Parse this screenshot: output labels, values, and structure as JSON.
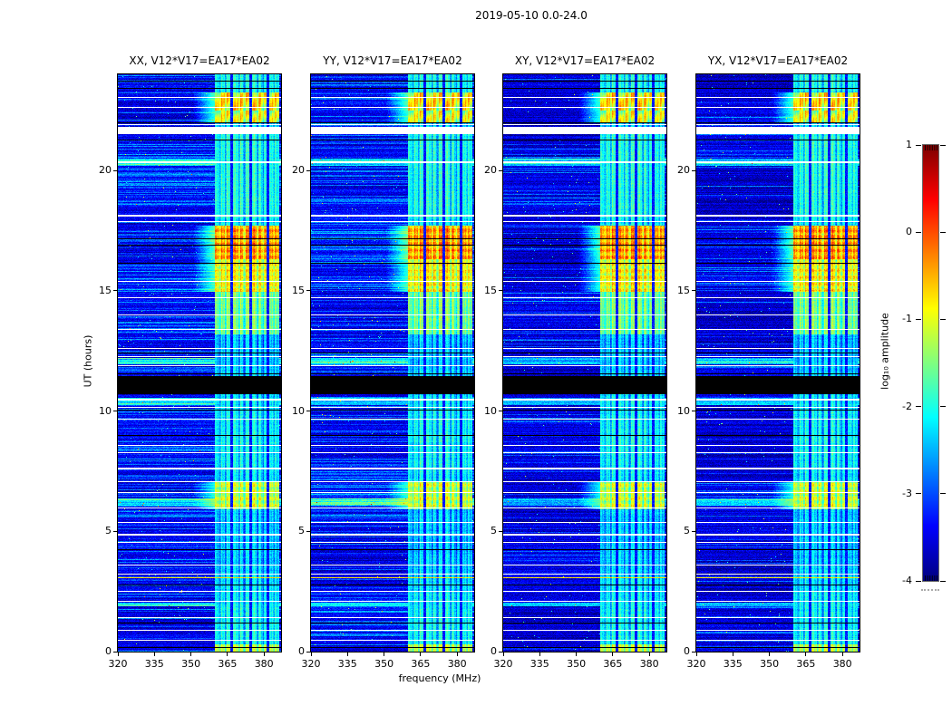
{
  "figure": {
    "title": "2019-05-10 0.0-24.0"
  },
  "chart_data": {
    "type": "heatmap",
    "title": "2019-05-10 0.0-24.0",
    "xlabel": "frequency (MHz)",
    "ylabel": "UT (hours)",
    "xlim": [
      320,
      387
    ],
    "xticks": [
      320,
      335,
      350,
      365,
      380
    ],
    "ylim": [
      0,
      24
    ],
    "yticks": [
      0,
      5,
      10,
      15,
      20
    ],
    "value_range": [
      -4,
      1
    ],
    "colormap": "jet",
    "colorbar": {
      "label": "log₁₀ amplitude",
      "ticks": [
        1,
        0,
        -1,
        -2,
        -3,
        -4
      ]
    },
    "panels": [
      {
        "title": "XX, V12*V17=EA17*EA02",
        "seed": 101,
        "bg": -3.5,
        "stripe_prob": 0.2
      },
      {
        "title": "YY, V12*V17=EA17*EA02",
        "seed": 202,
        "bg": -3.5,
        "stripe_prob": 0.2
      },
      {
        "title": "XY, V12*V17=EA17*EA02",
        "seed": 303,
        "bg": -3.62,
        "stripe_prob": 0.08
      },
      {
        "title": "YX, V12*V17=EA17*EA02",
        "seed": 404,
        "bg": -3.62,
        "stripe_prob": 0.08
      }
    ],
    "band": {
      "start": 0.594,
      "end": 0.989,
      "base": -2.15,
      "gaps": [
        [
          0.689,
          0.707
        ],
        [
          0.806,
          0.822
        ],
        [
          0.911,
          0.928
        ]
      ],
      "dark_cols": [
        0.625,
        0.66,
        0.745,
        0.775,
        0.855,
        0.885,
        0.955
      ]
    },
    "band_events": [
      {
        "ut": [
          23.3,
          24.0
        ],
        "value": -1.95,
        "kind": "flat"
      },
      {
        "ut": [
          22.5,
          23.25
        ],
        "value": -0.5,
        "kind": "blob"
      },
      {
        "ut": [
          21.95,
          22.48
        ],
        "value": -0.72,
        "kind": "blob"
      },
      {
        "ut": [
          18.0,
          21.55
        ],
        "value": -1.9,
        "kind": "flat"
      },
      {
        "ut": [
          16.3,
          17.7
        ],
        "value": -0.28,
        "kind": "rows",
        "spill": true
      },
      {
        "ut": [
          14.95,
          16.3
        ],
        "value": -0.78,
        "kind": "rows",
        "spill": true
      },
      {
        "ut": [
          13.2,
          14.95
        ],
        "value": -1.45,
        "kind": "flat"
      },
      {
        "ut": [
          5.9,
          7.05
        ],
        "value": -1.05,
        "kind": "rows",
        "spill": true
      },
      {
        "ut": [
          0.0,
          0.3
        ],
        "value": -1.1,
        "kind": "flat"
      }
    ],
    "black_band": [
      10.75,
      11.45
    ],
    "white_band": [
      21.55,
      21.8
    ],
    "white_lines": [
      [
        23.05,
        1
      ],
      [
        22.65,
        1
      ],
      [
        21.93,
        1
      ],
      [
        20.4,
        2
      ],
      [
        18.15,
        2
      ],
      [
        17.9,
        1
      ],
      [
        15.4,
        1
      ],
      [
        14.75,
        1
      ],
      [
        14.0,
        1
      ],
      [
        13.4,
        1
      ],
      [
        12.62,
        1
      ],
      [
        12.3,
        1
      ],
      [
        11.92,
        1
      ],
      [
        10.52,
        2
      ],
      [
        10.18,
        1
      ],
      [
        9.7,
        1
      ],
      [
        8.6,
        1
      ],
      [
        8.3,
        1
      ],
      [
        7.65,
        2
      ],
      [
        7.1,
        1
      ],
      [
        6.62,
        1
      ],
      [
        6.0,
        1
      ],
      [
        5.38,
        1
      ],
      [
        4.9,
        2
      ],
      [
        4.55,
        1
      ],
      [
        3.62,
        1
      ],
      [
        3.25,
        1
      ],
      [
        2.52,
        1
      ],
      [
        2.12,
        1
      ],
      [
        1.45,
        1
      ],
      [
        0.9,
        1
      ],
      [
        0.48,
        1
      ]
    ],
    "black_lines": [
      23.72,
      23.45,
      22.0,
      21.3,
      17.18,
      16.9,
      16.18,
      12.45,
      11.55,
      10.05,
      9.0,
      4.25,
      2.78,
      1.2,
      0.18
    ],
    "bright_rows": [
      [
        20.25,
        20.5
      ],
      [
        12.0,
        12.2
      ],
      [
        10.3,
        10.55
      ],
      [
        6.1,
        6.35
      ],
      [
        1.92,
        2.02
      ]
    ],
    "orange_line": {
      "ut": 3.08,
      "value": -0.75
    }
  }
}
